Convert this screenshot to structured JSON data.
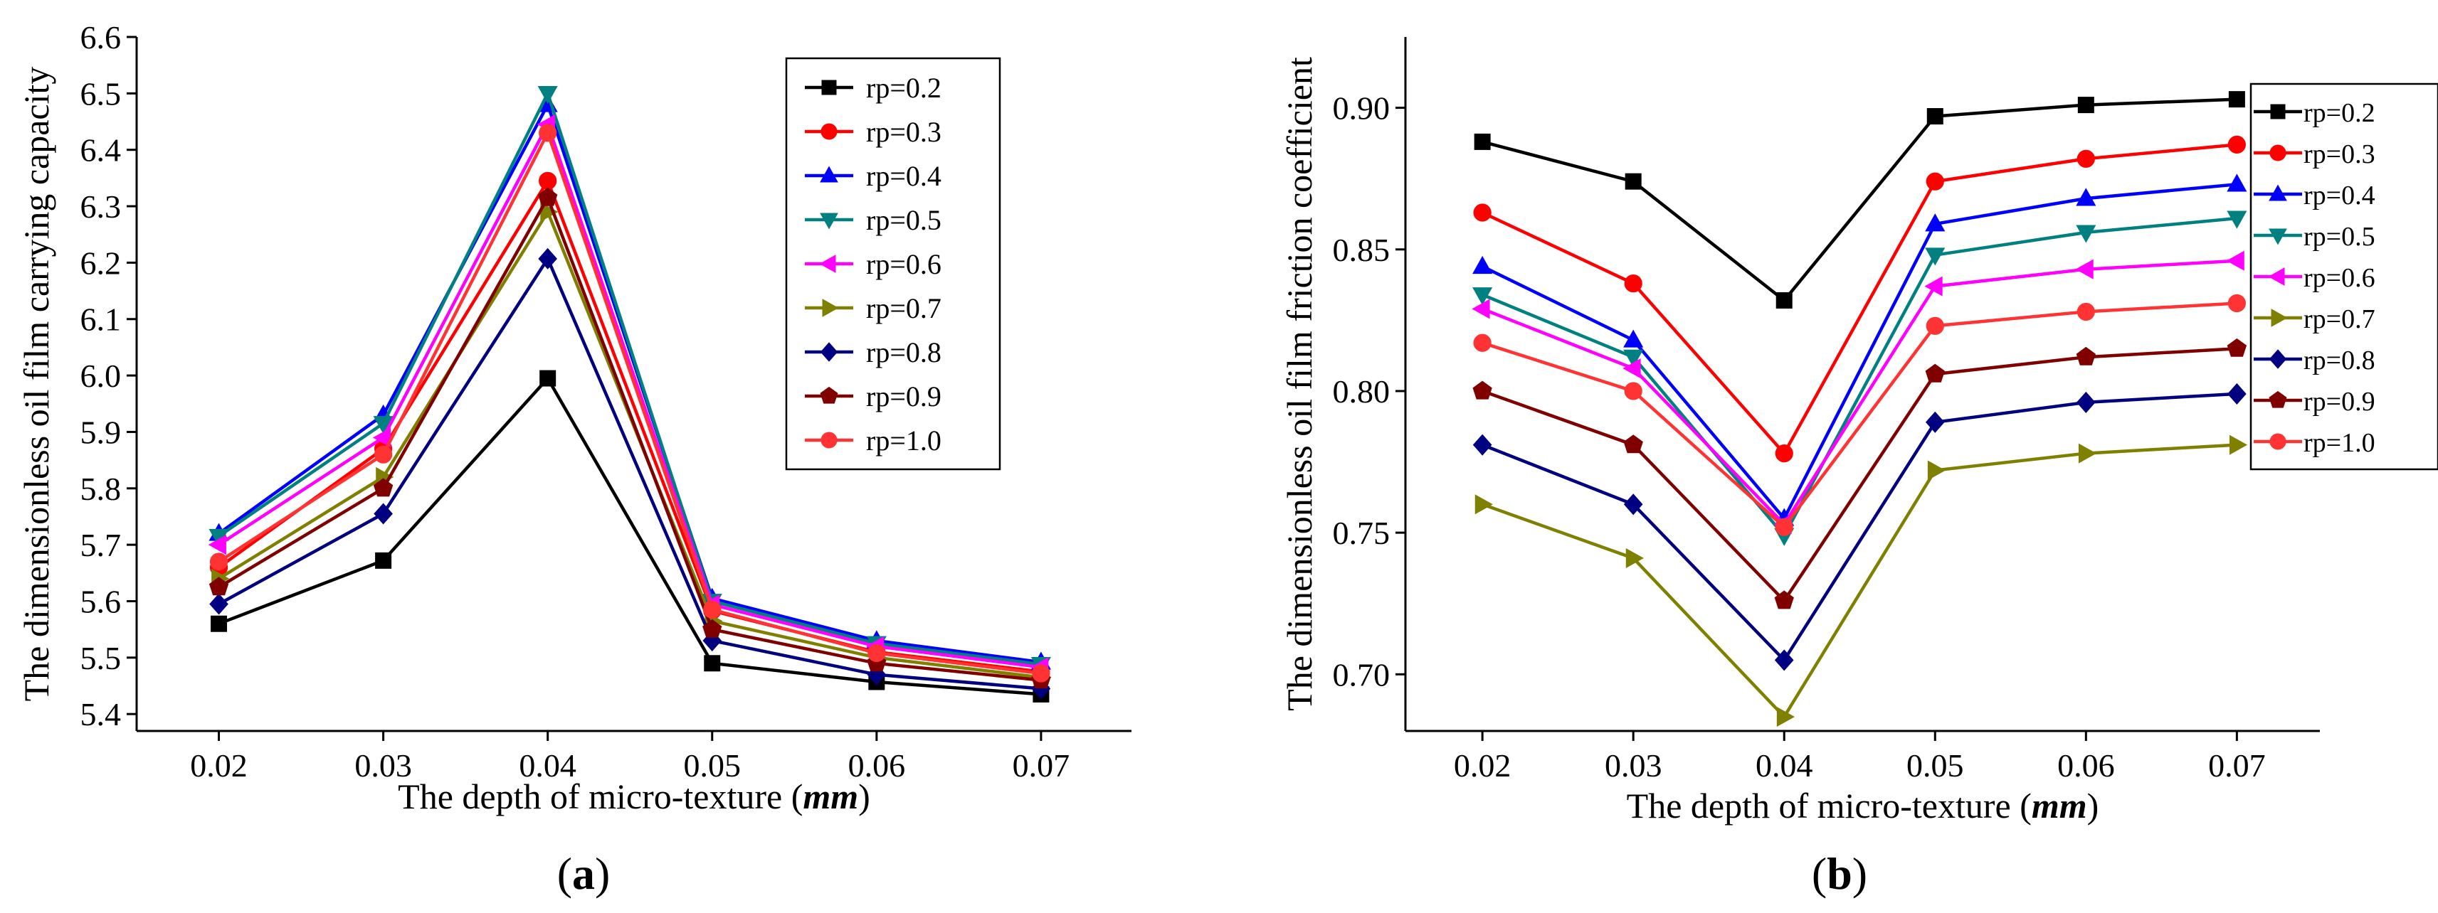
{
  "figure": {
    "labels": [
      "(a)",
      "(b)"
    ],
    "panel_labels": [
      {
        "open": "(",
        "letter": "a",
        "close": ")"
      },
      {
        "open": "(",
        "letter": "b",
        "close": ")"
      }
    ]
  },
  "chart_data": [
    {
      "type": "line",
      "panel": "(a)",
      "title": "",
      "xlabel": "The depth of micro-texture (mm)",
      "xlabel_parts": {
        "text": "The depth of micro-texture (",
        "unit": "mm",
        "close": ")"
      },
      "ylabel": "The dimensionless oil film carrying capacity",
      "x": [
        0.02,
        0.03,
        0.04,
        0.05,
        0.06,
        0.07
      ],
      "x_tick_labels": [
        "0.02",
        "0.03",
        "0.04",
        "0.05",
        "0.06",
        "0.07"
      ],
      "xlim": [
        0.015,
        0.0755
      ],
      "ylim": [
        5.37,
        6.6
      ],
      "y_ticks": [
        5.4,
        5.5,
        5.6,
        5.7,
        5.8,
        5.9,
        6.0,
        6.1,
        6.2,
        6.3,
        6.4,
        6.5,
        6.6
      ],
      "y_tick_labels": [
        "5.4",
        "5.5",
        "5.6",
        "5.7",
        "5.8",
        "5.9",
        "6.0",
        "6.1",
        "6.2",
        "6.3",
        "6.4",
        "6.5",
        "6.6"
      ],
      "legend_position": "top-right",
      "series": [
        {
          "name": "rp=0.2",
          "color": "#000000",
          "marker": "square",
          "values": [
            5.56,
            5.672,
            5.995,
            5.49,
            5.457,
            5.435
          ]
        },
        {
          "name": "rp=0.3",
          "color": "#ff0000",
          "marker": "circle",
          "values": [
            5.66,
            5.87,
            6.345,
            5.583,
            5.51,
            5.475
          ]
        },
        {
          "name": "rp=0.4",
          "color": "#0000ff",
          "marker": "triangle-up",
          "values": [
            5.72,
            5.93,
            6.48,
            5.605,
            5.53,
            5.492
          ]
        },
        {
          "name": "rp=0.5",
          "color": "#008080",
          "marker": "triangle-down",
          "values": [
            5.715,
            5.915,
            6.5,
            5.6,
            5.525,
            5.488
          ]
        },
        {
          "name": "rp=0.6",
          "color": "#ff00ff",
          "marker": "triangle-left",
          "values": [
            5.7,
            5.89,
            6.445,
            5.594,
            5.52,
            5.483
          ]
        },
        {
          "name": "rp=0.7",
          "color": "#808000",
          "marker": "triangle-right",
          "values": [
            5.64,
            5.82,
            6.29,
            5.565,
            5.5,
            5.465
          ]
        },
        {
          "name": "rp=0.8",
          "color": "#000080",
          "marker": "diamond",
          "values": [
            5.595,
            5.755,
            6.207,
            5.53,
            5.47,
            5.445
          ]
        },
        {
          "name": "rp=0.9",
          "color": "#800000",
          "marker": "pentagon",
          "values": [
            5.625,
            5.8,
            6.315,
            5.55,
            5.49,
            5.46
          ]
        },
        {
          "name": "rp=1.0",
          "color": "#ff3333",
          "marker": "circle",
          "values": [
            5.67,
            5.86,
            6.43,
            5.585,
            5.508,
            5.472
          ]
        }
      ]
    },
    {
      "type": "line",
      "panel": "(b)",
      "title": "",
      "xlabel": "The depth of micro-texture (mm)",
      "xlabel_parts": {
        "text": "The depth of micro-texture (",
        "unit": "mm",
        "close": ")"
      },
      "ylabel": "The dimensionless oil film friction coefficient",
      "x": [
        0.02,
        0.03,
        0.04,
        0.05,
        0.06,
        0.07
      ],
      "x_tick_labels": [
        "0.02",
        "0.03",
        "0.04",
        "0.05",
        "0.06",
        "0.07"
      ],
      "xlim": [
        0.0149,
        0.0755
      ],
      "ylim": [
        0.68,
        0.925
      ],
      "y_ticks": [
        0.7,
        0.75,
        0.8,
        0.85,
        0.9
      ],
      "y_tick_labels": [
        "0.70",
        "0.75",
        "0.80",
        "0.85",
        "0.90"
      ],
      "legend_position": "right",
      "series": [
        {
          "name": "rp=0.2",
          "color": "#000000",
          "marker": "square",
          "values": [
            0.888,
            0.874,
            0.832,
            0.897,
            0.901,
            0.903
          ]
        },
        {
          "name": "rp=0.3",
          "color": "#ff0000",
          "marker": "circle",
          "values": [
            0.863,
            0.838,
            0.778,
            0.874,
            0.882,
            0.887
          ]
        },
        {
          "name": "rp=0.4",
          "color": "#0000ff",
          "marker": "triangle-up",
          "values": [
            0.844,
            0.818,
            0.755,
            0.859,
            0.868,
            0.873
          ]
        },
        {
          "name": "rp=0.5",
          "color": "#008080",
          "marker": "triangle-down",
          "values": [
            0.834,
            0.812,
            0.749,
            0.848,
            0.856,
            0.861
          ]
        },
        {
          "name": "rp=0.6",
          "color": "#ff00ff",
          "marker": "triangle-left",
          "values": [
            0.829,
            0.808,
            0.753,
            0.837,
            0.843,
            0.846
          ]
        },
        {
          "name": "rp=0.7",
          "color": "#808000",
          "marker": "triangle-right",
          "values": [
            0.76,
            0.741,
            0.685,
            0.772,
            0.778,
            0.781
          ]
        },
        {
          "name": "rp=0.8",
          "color": "#000080",
          "marker": "diamond",
          "values": [
            0.781,
            0.76,
            0.705,
            0.789,
            0.796,
            0.799
          ]
        },
        {
          "name": "rp=0.9",
          "color": "#800000",
          "marker": "pentagon",
          "values": [
            0.8,
            0.781,
            0.726,
            0.806,
            0.812,
            0.815
          ]
        },
        {
          "name": "rp=1.0",
          "color": "#ff3333",
          "marker": "circle",
          "values": [
            0.817,
            0.8,
            0.752,
            0.823,
            0.828,
            0.831
          ]
        }
      ]
    }
  ]
}
